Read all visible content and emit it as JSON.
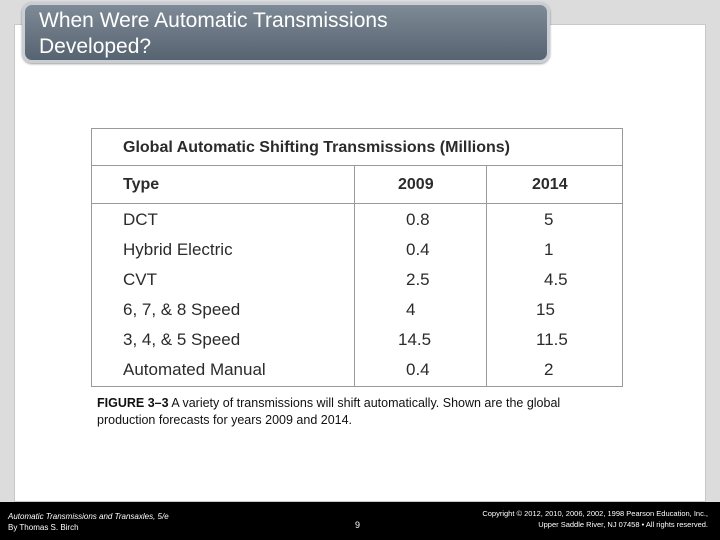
{
  "title": "When Were Automatic Transmissions\nDeveloped?",
  "table": {
    "title": "Global Automatic Shifting Transmissions (Millions)",
    "headers": [
      "Type",
      "2009",
      "2014"
    ],
    "rows": [
      {
        "type": "DCT",
        "y2009": "0.8",
        "y2014": "5"
      },
      {
        "type": "Hybrid Electric",
        "y2009": "0.4",
        "y2014": "1"
      },
      {
        "type": "CVT",
        "y2009": "2.5",
        "y2014": "4.5"
      },
      {
        "type": "6, 7, & 8 Speed",
        "y2009": "4",
        "y2014": "15"
      },
      {
        "type": "3, 4, & 5 Speed",
        "y2009": "14.5",
        "y2014": "11.5"
      },
      {
        "type": "Automated Manual",
        "y2009": "0.4",
        "y2014": "2"
      }
    ]
  },
  "caption": {
    "label": "FIGURE 3–3",
    "text": " A variety of transmissions will shift automatically. Shown are the global production forecasts for years 2009 and 2014."
  },
  "footer": {
    "book_title": "Automatic Transmissions and Transaxles, 5/e",
    "author": "By Thomas S. Birch",
    "page": "9",
    "copyright_line1": "Copyright © 2012, 2010, 2006, 2002, 1998 Pearson Education, Inc.,",
    "copyright_line2": "Upper Saddle River, NJ 07458 • All rights reserved."
  }
}
